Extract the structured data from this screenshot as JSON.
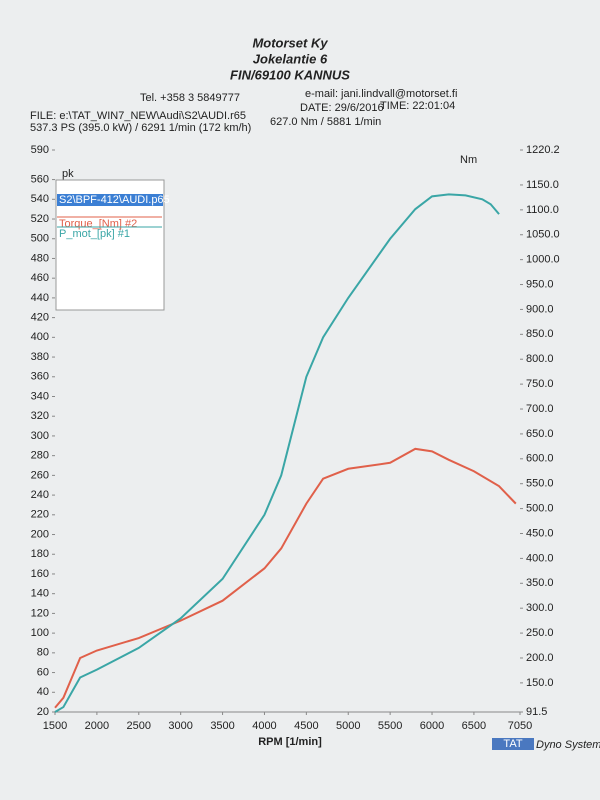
{
  "chart_data": {
    "type": "line",
    "header": {
      "company": "Motorset Ky",
      "street": "Jokelantie 6",
      "city": "FIN/69100 KANNUS",
      "phone": "Tel. +358 3 5849777",
      "email": "e-mail: jani.lindvall@motorset.fi",
      "file": "FILE: e:\\TAT_WIN7_NEW\\Audi\\S2\\AUDI.r65",
      "date": "DATE: 29/6/2016",
      "time": "TIME: 22:01:04",
      "power_peak": "537.3 PS (395.0 kW) / 6291 1/min (172 km/h)",
      "torque_peak": "627.0 Nm / 5881 1/min"
    },
    "y_label": "pk",
    "y2_label": "Nm",
    "x_label": "RPM  [1/min]",
    "legend_title": "S2\\BPF-412\\AUDI.p65",
    "footer_logo": "TAT",
    "footer_text": "Dyno System",
    "xlim": [
      1500,
      7050
    ],
    "xticks": [
      1500,
      2000,
      2500,
      3000,
      3500,
      4000,
      4500,
      5000,
      5500,
      6000,
      6500,
      7050
    ],
    "ylim": [
      20,
      590
    ],
    "yticks": [
      20,
      40,
      60,
      80,
      100,
      120,
      140,
      160,
      180,
      200,
      220,
      240,
      260,
      280,
      300,
      320,
      340,
      360,
      380,
      400,
      420,
      440,
      460,
      480,
      500,
      520,
      540,
      560,
      590
    ],
    "y2lim": [
      91.5,
      1220.2
    ],
    "y2ticks": [
      91.5,
      {
        "value": 150,
        "label": "150.0"
      },
      {
        "value": 200,
        "label": "200.0"
      },
      {
        "value": 250,
        "label": "250.0"
      },
      {
        "value": 300,
        "label": "300.0"
      },
      {
        "value": 350,
        "label": "350.0"
      },
      {
        "value": 400,
        "label": "400.0"
      },
      {
        "value": 450,
        "label": "450.0"
      },
      {
        "value": 500,
        "label": "500.0"
      },
      {
        "value": 550,
        "label": "550.0"
      },
      {
        "value": 600,
        "label": "600.0"
      },
      {
        "value": 650,
        "label": "650.0"
      },
      {
        "value": 700,
        "label": "700.0"
      },
      {
        "value": 750,
        "label": "750.0"
      },
      {
        "value": 800,
        "label": "800.0"
      },
      {
        "value": 850,
        "label": "850.0"
      },
      {
        "value": 900,
        "label": "900.0"
      },
      {
        "value": 950,
        "label": "950.0"
      },
      {
        "value": 1000,
        "label": "1000.0"
      },
      {
        "value": 1050,
        "label": "1050.0"
      },
      {
        "value": 1100,
        "label": "1100.0"
      },
      {
        "value": 1150,
        "label": "1150.0"
      },
      1220.2
    ],
    "series": [
      {
        "name": "Torque_[Nm] #2",
        "color": "#e0604a",
        "axis": "y2",
        "x": [
          1500,
          1600,
          1700,
          1800,
          2000,
          2500,
          3000,
          3500,
          4000,
          4200,
          4500,
          4700,
          5000,
          5500,
          5800,
          6000,
          6200,
          6500,
          6800,
          7000
        ],
        "values": [
          100,
          120,
          160,
          200,
          215,
          240,
          275,
          315,
          380,
          420,
          510,
          560,
          580,
          592,
          620,
          615,
          598,
          575,
          545,
          510
        ]
      },
      {
        "name": "P_mot_[pk] #1",
        "color": "#3aa6a6",
        "x": [
          1500,
          1600,
          1700,
          1800,
          2000,
          2500,
          3000,
          3500,
          4000,
          4200,
          4500,
          4700,
          5000,
          5500,
          5800,
          6000,
          6200,
          6400,
          6600,
          6700,
          6800
        ],
        "values": [
          20,
          25,
          40,
          55,
          63,
          85,
          115,
          155,
          220,
          260,
          360,
          400,
          440,
          500,
          530,
          543,
          545,
          544,
          540,
          535,
          525
        ]
      }
    ]
  }
}
